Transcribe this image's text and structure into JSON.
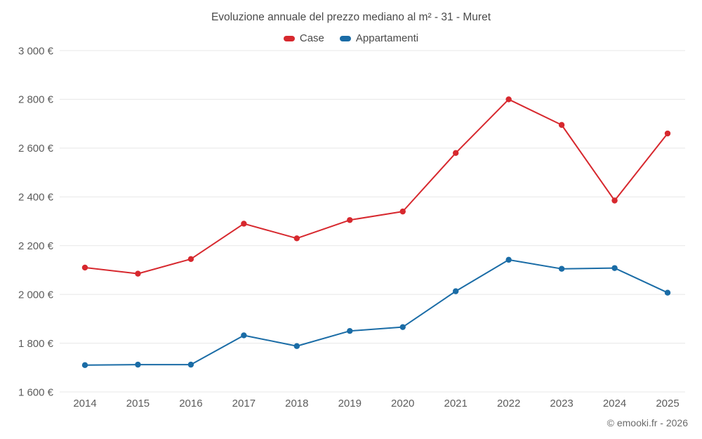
{
  "chart_data": {
    "type": "line",
    "title": "Evoluzione annuale del prezzo mediano al m² - 31 - Muret",
    "categories": [
      "2014",
      "2015",
      "2016",
      "2017",
      "2018",
      "2019",
      "2020",
      "2021",
      "2022",
      "2023",
      "2024",
      "2025"
    ],
    "series": [
      {
        "name": "Case",
        "color": "#d7282e",
        "values": [
          2110,
          2085,
          2145,
          2290,
          2230,
          2305,
          2340,
          2580,
          2800,
          2695,
          2385,
          2660
        ]
      },
      {
        "name": "Appartamenti",
        "color": "#1a6ca6",
        "values": [
          1710,
          1712,
          1712,
          1832,
          1788,
          1850,
          1866,
          2013,
          2142,
          2105,
          2108,
          2007
        ]
      }
    ],
    "ylim": [
      1600,
      3000
    ],
    "yticks": [
      1600,
      1800,
      2000,
      2200,
      2400,
      2600,
      2800,
      3000
    ],
    "ytick_labels": [
      "1 600 €",
      "1 800 €",
      "2 000 €",
      "2 200 €",
      "2 400 €",
      "2 600 €",
      "2 800 €",
      "3 000 €"
    ],
    "xlabel": "",
    "ylabel": "",
    "grid": "horizontal",
    "grid_color": "#e7e7e7",
    "tick_color": "#5c5c5c",
    "legend_position": "top-center",
    "footer": "© emooki.fr - 2026"
  }
}
